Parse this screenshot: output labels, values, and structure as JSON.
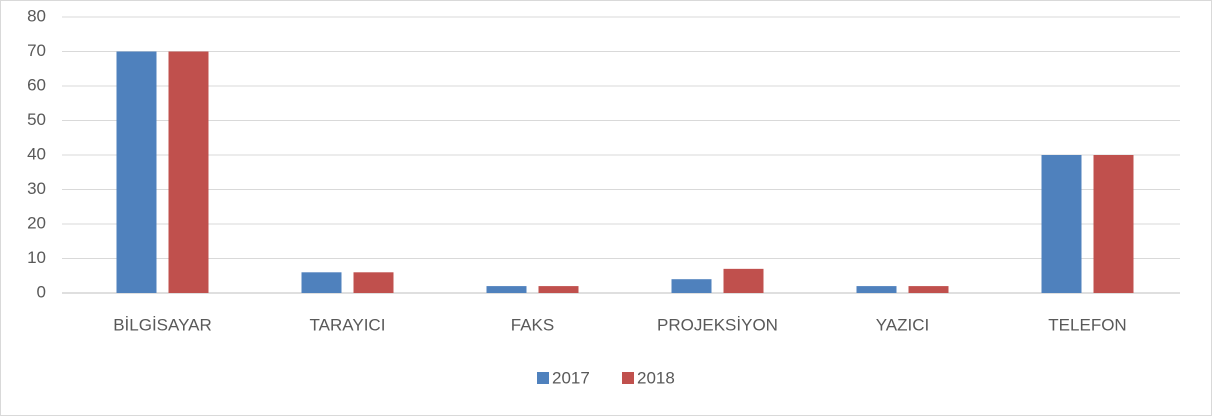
{
  "chart_data": {
    "type": "bar",
    "categories": [
      "BİLGİSAYAR",
      "TARAYICI",
      "FAKS",
      "PROJEKSİYON",
      "YAZICI",
      "TELEFON"
    ],
    "series": [
      {
        "name": "2017",
        "color": "#4f81bd",
        "values": [
          70,
          6,
          2,
          4,
          2,
          40
        ]
      },
      {
        "name": "2018",
        "color": "#c0504d",
        "values": [
          70,
          6,
          2,
          7,
          2,
          40
        ]
      }
    ],
    "ylim": [
      0,
      80
    ],
    "yticks": [
      0,
      10,
      20,
      30,
      40,
      50,
      60,
      70,
      80
    ],
    "grid": true,
    "legend": "bottom"
  }
}
